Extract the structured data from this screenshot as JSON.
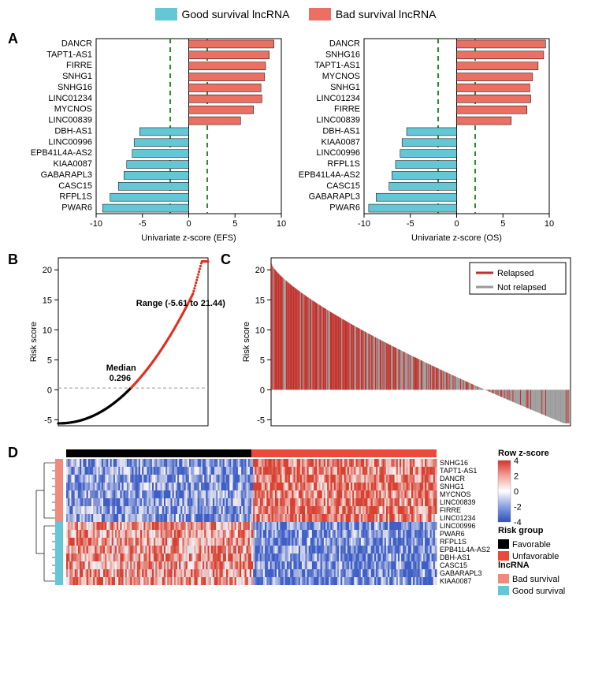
{
  "legend_top": {
    "good": {
      "label": "Good survival lncRNA",
      "color": "#63c7d6"
    },
    "bad": {
      "label": "Bad survival lncRNA",
      "color": "#eb6f62"
    }
  },
  "panelA": {
    "label": "A",
    "xlim": [
      -10,
      10
    ],
    "xticks": [
      -10,
      -5,
      0,
      5,
      10
    ],
    "threshold_lines": [
      -2,
      2
    ],
    "threshold_color": "#2e8b2e",
    "left": {
      "xlabel": "Univariate z-score (EFS)",
      "bars": [
        {
          "name": "DANCR",
          "value": 9.2,
          "type": "bad"
        },
        {
          "name": "TAPT1-AS1",
          "value": 8.7,
          "type": "bad"
        },
        {
          "name": "FIRRE",
          "value": 8.3,
          "type": "bad"
        },
        {
          "name": "SNHG1",
          "value": 8.2,
          "type": "bad"
        },
        {
          "name": "SNHG16",
          "value": 7.8,
          "type": "bad"
        },
        {
          "name": "LINC01234",
          "value": 7.9,
          "type": "bad"
        },
        {
          "name": "MYCNOS",
          "value": 7.0,
          "type": "bad"
        },
        {
          "name": "LINC00839",
          "value": 5.6,
          "type": "bad"
        },
        {
          "name": "DBH-AS1",
          "value": -5.3,
          "type": "good"
        },
        {
          "name": "LINC00996",
          "value": -5.9,
          "type": "good"
        },
        {
          "name": "EPB41L4A-AS2",
          "value": -6.1,
          "type": "good"
        },
        {
          "name": "KIAA0087",
          "value": -6.7,
          "type": "good"
        },
        {
          "name": "GABARAPL3",
          "value": -7.0,
          "type": "good"
        },
        {
          "name": "CASC15",
          "value": -7.6,
          "type": "good"
        },
        {
          "name": "RFPL1S",
          "value": -8.5,
          "type": "good"
        },
        {
          "name": "PWAR6",
          "value": -9.3,
          "type": "good"
        }
      ]
    },
    "right": {
      "xlabel": "Univariate z-score (OS)",
      "bars": [
        {
          "name": "DANCR",
          "value": 9.6,
          "type": "bad"
        },
        {
          "name": "SNHG16",
          "value": 9.4,
          "type": "bad"
        },
        {
          "name": "TAPT1-AS1",
          "value": 8.8,
          "type": "bad"
        },
        {
          "name": "MYCNOS",
          "value": 8.2,
          "type": "bad"
        },
        {
          "name": "SNHG1",
          "value": 7.9,
          "type": "bad"
        },
        {
          "name": "LINC01234",
          "value": 8.0,
          "type": "bad"
        },
        {
          "name": "FIRRE",
          "value": 7.6,
          "type": "bad"
        },
        {
          "name": "LINC00839",
          "value": 5.9,
          "type": "bad"
        },
        {
          "name": "DBH-AS1",
          "value": -5.4,
          "type": "good"
        },
        {
          "name": "KIAA0087",
          "value": -5.9,
          "type": "good"
        },
        {
          "name": "LINC00996",
          "value": -6.1,
          "type": "good"
        },
        {
          "name": "RFPL1S",
          "value": -6.6,
          "type": "good"
        },
        {
          "name": "EPB41L4A-AS2",
          "value": -7.0,
          "type": "good"
        },
        {
          "name": "CASC15",
          "value": -7.3,
          "type": "good"
        },
        {
          "name": "GABARAPL3",
          "value": -8.7,
          "type": "good"
        },
        {
          "name": "PWAR6",
          "value": -9.5,
          "type": "good"
        }
      ]
    }
  },
  "panelB": {
    "label": "B",
    "ylabel": "Risk score",
    "ylim": [
      -6,
      22
    ],
    "yticks": [
      -5,
      0,
      5,
      10,
      15,
      20
    ],
    "annot_range": "Range (-5.61 to 21.44)",
    "annot_median_label": "Median",
    "annot_median_value": "0.296",
    "median_line_y": 0.296,
    "median_line_color": "#999999",
    "low_color": "#000000",
    "high_color": "#e03020",
    "n_points": 200
  },
  "panelC": {
    "label": "C",
    "ylabel": "Risk score",
    "ylim": [
      -6,
      22
    ],
    "yticks": [
      -5,
      0,
      5,
      10,
      15,
      20
    ],
    "legend_title": "",
    "legend_items": [
      {
        "label": "Relapsed",
        "color": "#c0302a"
      },
      {
        "label": "Not relapsed",
        "color": "#999999"
      }
    ],
    "n_bars": 320
  },
  "panelD": {
    "label": "D",
    "rows": [
      {
        "name": "SNHG16",
        "type": "bad"
      },
      {
        "name": "TAPT1-AS1",
        "type": "bad"
      },
      {
        "name": "DANCR",
        "type": "bad"
      },
      {
        "name": "SNHG1",
        "type": "bad"
      },
      {
        "name": "MYCNOS",
        "type": "bad"
      },
      {
        "name": "LINC00839",
        "type": "bad"
      },
      {
        "name": "FIRRE",
        "type": "bad"
      },
      {
        "name": "LINC01234",
        "type": "bad"
      },
      {
        "name": "LINC00996",
        "type": "good"
      },
      {
        "name": "PWAR6",
        "type": "good"
      },
      {
        "name": "RFPL1S",
        "type": "good"
      },
      {
        "name": "EPB41L4A-AS2",
        "type": "good"
      },
      {
        "name": "DBH-AS1",
        "type": "good"
      },
      {
        "name": "CASC15",
        "type": "good"
      },
      {
        "name": "GABARAPL3",
        "type": "good"
      },
      {
        "name": "KIAA0087",
        "type": "good"
      }
    ],
    "n_cols": 220,
    "risk_group": {
      "label": "Risk group",
      "favorable": {
        "label": "Favorable",
        "color": "#000000"
      },
      "unfavorable": {
        "label": "Unfavorable",
        "color": "#eb4a3a"
      }
    },
    "lncRNA_legend": {
      "label": "lncRNA",
      "bad": {
        "label": "Bad survival",
        "color": "#f08a7d"
      },
      "good": {
        "label": "Good survival",
        "color": "#63c7d6"
      }
    },
    "zscore_legend": {
      "label": "Row z-score",
      "ticks": [
        -4,
        -2,
        0,
        2,
        4
      ],
      "colors": [
        "#2a4fbf",
        "#8aa0e0",
        "#ffffff",
        "#f2a298",
        "#d6332a"
      ]
    },
    "heatmap_blue": "#3e5fc7",
    "heatmap_red": "#d84030",
    "heatmap_mid": "#f6f2f2"
  }
}
